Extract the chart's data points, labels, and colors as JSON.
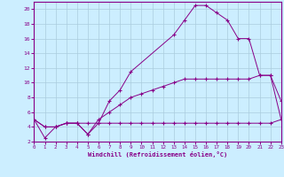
{
  "xlabel": "Windchill (Refroidissement éolien,°C)",
  "bg_color": "#cceeff",
  "grid_color": "#aaccdd",
  "line_color": "#880088",
  "xlim": [
    0,
    23
  ],
  "ylim": [
    2,
    21
  ],
  "yticks": [
    2,
    4,
    6,
    8,
    10,
    12,
    14,
    16,
    18,
    20
  ],
  "xticks": [
    0,
    1,
    2,
    3,
    4,
    5,
    6,
    7,
    8,
    9,
    10,
    11,
    12,
    13,
    14,
    15,
    16,
    17,
    18,
    19,
    20,
    21,
    22,
    23
  ],
  "series1": [
    [
      0,
      5
    ],
    [
      1,
      2.5
    ],
    [
      2,
      4
    ],
    [
      3,
      4.5
    ],
    [
      4,
      4.5
    ],
    [
      5,
      3
    ],
    [
      6,
      4.5
    ],
    [
      7,
      7.5
    ],
    [
      8,
      9
    ],
    [
      9,
      11.5
    ],
    [
      13,
      16.5
    ],
    [
      14,
      18.5
    ],
    [
      15,
      20.5
    ],
    [
      16,
      20.5
    ],
    [
      17,
      19.5
    ],
    [
      18,
      18.5
    ],
    [
      19,
      16
    ],
    [
      20,
      16
    ],
    [
      21,
      11
    ],
    [
      22,
      11
    ],
    [
      23,
      5
    ]
  ],
  "series2": [
    [
      0,
      5
    ],
    [
      1,
      4
    ],
    [
      2,
      4
    ],
    [
      3,
      4.5
    ],
    [
      4,
      4.5
    ],
    [
      5,
      4.5
    ],
    [
      6,
      4.5
    ],
    [
      7,
      4.5
    ],
    [
      8,
      4.5
    ],
    [
      9,
      4.5
    ],
    [
      10,
      4.5
    ],
    [
      11,
      4.5
    ],
    [
      12,
      4.5
    ],
    [
      13,
      4.5
    ],
    [
      14,
      4.5
    ],
    [
      15,
      4.5
    ],
    [
      16,
      4.5
    ],
    [
      17,
      4.5
    ],
    [
      18,
      4.5
    ],
    [
      19,
      4.5
    ],
    [
      20,
      4.5
    ],
    [
      21,
      4.5
    ],
    [
      22,
      4.5
    ],
    [
      23,
      5
    ]
  ],
  "series3": [
    [
      0,
      5
    ],
    [
      1,
      4
    ],
    [
      2,
      4
    ],
    [
      3,
      4.5
    ],
    [
      4,
      4.5
    ],
    [
      5,
      3
    ],
    [
      6,
      5
    ],
    [
      7,
      6
    ],
    [
      8,
      7
    ],
    [
      9,
      8
    ],
    [
      10,
      8.5
    ],
    [
      11,
      9
    ],
    [
      12,
      9.5
    ],
    [
      13,
      10
    ],
    [
      14,
      10.5
    ],
    [
      15,
      10.5
    ],
    [
      16,
      10.5
    ],
    [
      17,
      10.5
    ],
    [
      18,
      10.5
    ],
    [
      19,
      10.5
    ],
    [
      20,
      10.5
    ],
    [
      21,
      11
    ],
    [
      22,
      11
    ],
    [
      23,
      7.5
    ]
  ]
}
